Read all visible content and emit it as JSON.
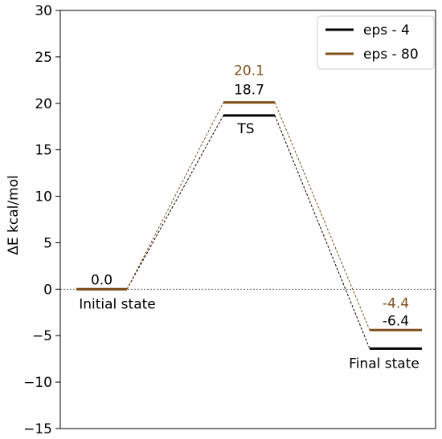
{
  "chart_data": {
    "type": "line",
    "title": "",
    "xlabel": "",
    "ylabel": "ΔE  kcal/mol",
    "ylim": [
      -15,
      30
    ],
    "yticks": [
      -15,
      -10,
      -5,
      0,
      5,
      10,
      15,
      20,
      25,
      30
    ],
    "ytick_labels": [
      "−15",
      "−10",
      "−5",
      "0",
      "5",
      "10",
      "15",
      "20",
      "25",
      "30"
    ],
    "grid": false,
    "legend_position": "top-right",
    "zero_line": true,
    "states": [
      "Initial state",
      "TS",
      "Final state"
    ],
    "series": [
      {
        "name": "eps - 4",
        "color": "#000000",
        "values": [
          0.0,
          18.7,
          -6.4
        ],
        "labels": [
          "0.0",
          "18.7",
          "-6.4"
        ]
      },
      {
        "name": "eps - 80",
        "color": "#7f4f1a",
        "values": [
          0.0,
          20.1,
          -4.4
        ],
        "labels": [
          "",
          "20.1",
          "-4.4"
        ]
      }
    ]
  }
}
